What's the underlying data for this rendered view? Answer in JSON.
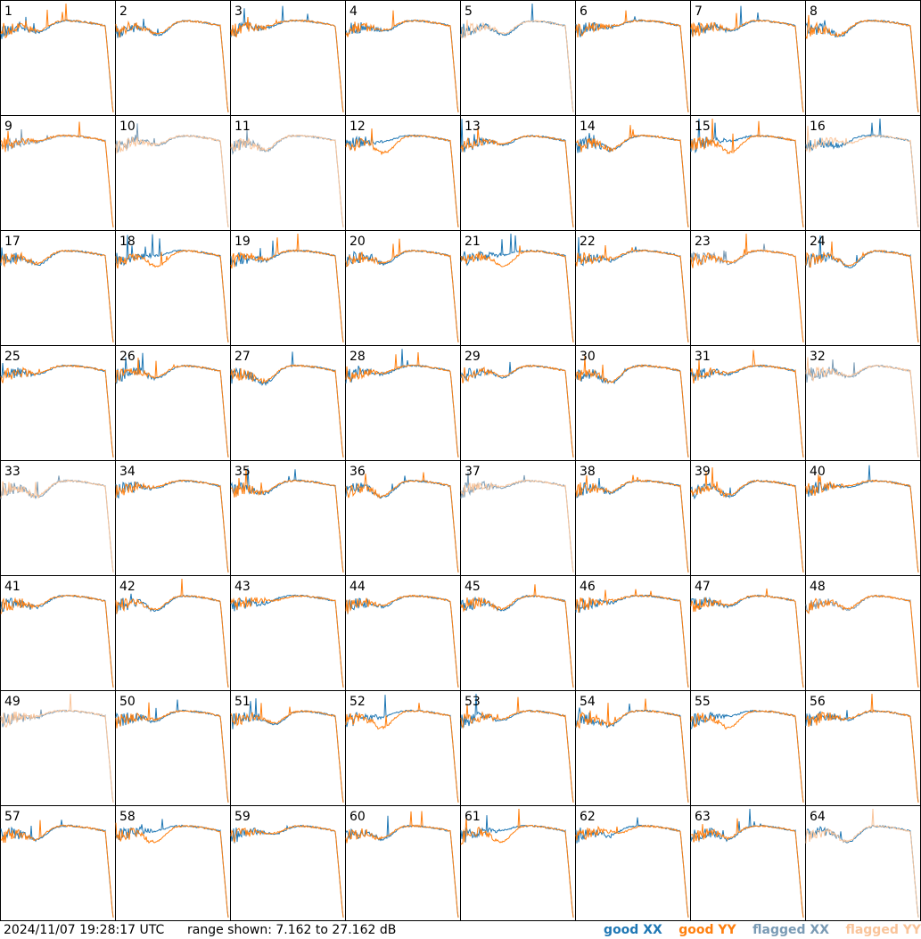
{
  "chart_data": {
    "type": "line",
    "panel_count": 64,
    "panels": [
      "1",
      "2",
      "3",
      "4",
      "5",
      "6",
      "7",
      "8",
      "9",
      "10",
      "11",
      "12",
      "13",
      "14",
      "15",
      "16",
      "17",
      "18",
      "19",
      "20",
      "21",
      "22",
      "23",
      "24",
      "25",
      "26",
      "27",
      "28",
      "29",
      "30",
      "31",
      "32",
      "33",
      "34",
      "35",
      "36",
      "37",
      "38",
      "39",
      "40",
      "41",
      "42",
      "43",
      "44",
      "45",
      "46",
      "47",
      "48",
      "49",
      "50",
      "51",
      "52",
      "53",
      "54",
      "55",
      "56",
      "57",
      "58",
      "59",
      "60",
      "61",
      "62",
      "63",
      "64"
    ],
    "y_range_db": [
      7.162,
      27.162
    ],
    "series": [
      {
        "name": "good XX",
        "color": "#1f77b4"
      },
      {
        "name": "good YY",
        "color": "#ff7f0e"
      },
      {
        "name": "flagged XX",
        "color": "#7a9bb5"
      },
      {
        "name": "flagged YY",
        "color": "#f9c49a"
      }
    ],
    "flagged_xx": [
      "9",
      "10",
      "11",
      "23",
      "32",
      "33",
      "37",
      "48",
      "49"
    ],
    "flagged_yy": [
      "5",
      "10",
      "11",
      "16",
      "32",
      "33",
      "37",
      "49",
      "64"
    ]
  },
  "footer": {
    "timestamp": "2024/11/07 19:28:17 UTC",
    "range_text": "range shown: 7.162 to 27.162 dB",
    "legend_good_xx": "good XX",
    "legend_good_yy": "good YY",
    "legend_flagged_xx": "flagged XX",
    "legend_flagged_yy": "flagged YY"
  },
  "colors": {
    "good_xx": "#1f77b4",
    "good_yy": "#ff7f0e",
    "flagged_xx": "#7a9bb5",
    "flagged_yy": "#f9c49a"
  }
}
